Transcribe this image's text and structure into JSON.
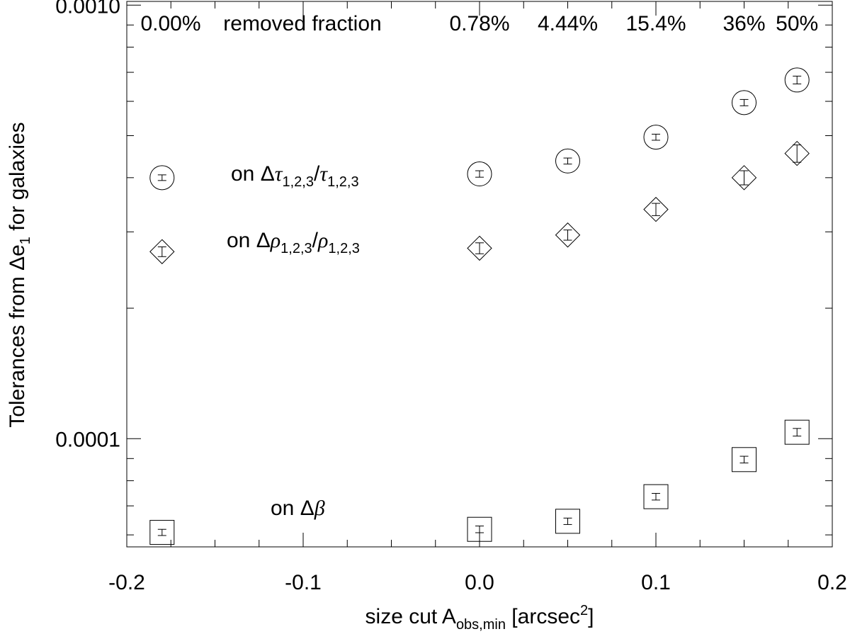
{
  "chart_data": {
    "type": "scatter",
    "xlabel": {
      "main": "size cut A",
      "sub": "obs,min",
      "unit_open": " [arcsec",
      "sup": "2",
      "unit_close": "]"
    },
    "ylabel": {
      "main": "Tolerances from Δe",
      "sub": "1",
      "rest": " for galaxies"
    },
    "xlim": [
      -0.2,
      0.2
    ],
    "ylim": [
      5.63e-05,
      0.00102
    ],
    "y_scale": "log",
    "x_ticks": [
      -0.2,
      -0.1,
      0.0,
      0.1,
      0.2
    ],
    "x_tick_labels": [
      "-0.2",
      "-0.1",
      "0.0",
      "0.1",
      "0.2"
    ],
    "y_ticks": [
      0.0001,
      0.001
    ],
    "y_tick_labels": [
      "0.0001",
      "0.0010"
    ],
    "removed_fraction": {
      "label": "removed fraction",
      "items": [
        {
          "x": -0.18,
          "text": "0.00%"
        },
        {
          "x": 0.0,
          "text": "0.78%"
        },
        {
          "x": 0.05,
          "text": "4.44%"
        },
        {
          "x": 0.1,
          "text": "15.4%"
        },
        {
          "x": 0.15,
          "text": "36%"
        },
        {
          "x": 0.18,
          "text": "50%"
        }
      ]
    },
    "series": [
      {
        "marker": "circle",
        "label": {
          "prefix": "on Δ",
          "sym": "τ",
          "sub": "1,2,3",
          "slash": "/",
          "sym2": "τ",
          "sub2": "1,2,3"
        },
        "points": [
          {
            "x": -0.18,
            "y": 0.0004,
            "err": 6e-06
          },
          {
            "x": 0.0,
            "y": 0.000408,
            "err": 7e-06
          },
          {
            "x": 0.05,
            "y": 0.000437,
            "err": 7e-06
          },
          {
            "x": 0.1,
            "y": 0.000496,
            "err": 8e-06
          },
          {
            "x": 0.15,
            "y": 0.000596,
            "err": 1e-05
          },
          {
            "x": 0.18,
            "y": 0.000672,
            "err": 1.4e-05
          }
        ]
      },
      {
        "marker": "diamond",
        "label": {
          "prefix": "on Δ",
          "sym": "ρ",
          "sub": "1,2,3",
          "slash": "/",
          "sym2": "ρ",
          "sub2": "1,2,3"
        },
        "points": [
          {
            "x": -0.18,
            "y": 0.00027,
            "err": 7e-06
          },
          {
            "x": 0.0,
            "y": 0.000275,
            "err": 8e-06
          },
          {
            "x": 0.05,
            "y": 0.000295,
            "err": 8e-06
          },
          {
            "x": 0.1,
            "y": 0.000338,
            "err": 1.1e-05
          },
          {
            "x": 0.15,
            "y": 0.0004,
            "err": 1.5e-05
          },
          {
            "x": 0.18,
            "y": 0.000455,
            "err": 2.1e-05
          }
        ]
      },
      {
        "marker": "square",
        "label": {
          "prefix": "on Δ",
          "sym": "β"
        },
        "points": [
          {
            "x": -0.18,
            "y": 6.08e-05,
            "err": 1e-06
          },
          {
            "x": 0.0,
            "y": 6.18e-05,
            "err": 1.1e-06
          },
          {
            "x": 0.05,
            "y": 6.45e-05,
            "err": 1.1e-06
          },
          {
            "x": 0.1,
            "y": 7.35e-05,
            "err": 1.3e-06
          },
          {
            "x": 0.15,
            "y": 8.95e-05,
            "err": 1.6e-06
          },
          {
            "x": 0.18,
            "y": 0.0001035,
            "err": 2.1e-06
          }
        ]
      }
    ]
  }
}
